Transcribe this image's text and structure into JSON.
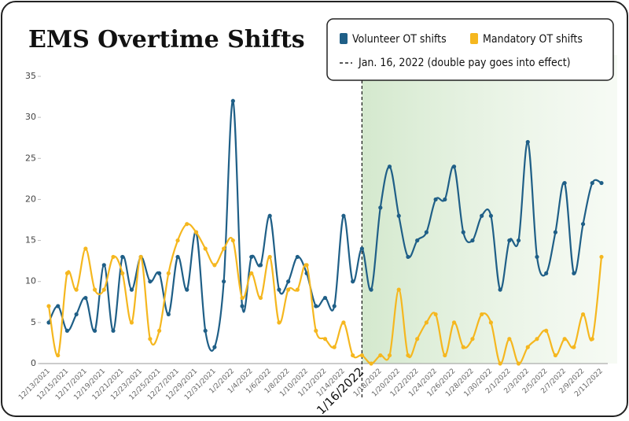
{
  "chart_data": {
    "type": "line",
    "title": "EMS Overtime Shifts",
    "categories": [
      "12/13/2021",
      null,
      "12/15/2021",
      null,
      "12/17/2021",
      null,
      "12/19/2021",
      null,
      "12/21/2021",
      null,
      "12/23/2021",
      null,
      "12/25/2021",
      null,
      "12/27/2021",
      null,
      "12/29/2021",
      null,
      "12/31/2021",
      null,
      "1/2/2022",
      null,
      "1/4/2022",
      null,
      "1/6/2022",
      null,
      "1/8/2022",
      null,
      "1/10/2022",
      null,
      "1/12/2022",
      null,
      "1/14/2022",
      null,
      "1/16/2022",
      null,
      "1/18/2022",
      null,
      "1/20/2022",
      null,
      "1/22/2022",
      null,
      "1/24/2022",
      null,
      "1/26/2022",
      null,
      "1/28/2022",
      null,
      "1/30/2022",
      null,
      "2/1/2022",
      null,
      "2/3/2022",
      null,
      "2/5/2022",
      null,
      "2/7/2022",
      null,
      "2/9/2022",
      null,
      "2/11/2022"
    ],
    "series": [
      {
        "name": "Volunteer OT shifts",
        "color": "#1f5f87",
        "values": [
          5,
          7,
          4,
          6,
          8,
          4,
          12,
          4,
          13,
          9,
          13,
          10,
          11,
          6,
          13,
          9,
          16,
          4,
          2,
          10,
          32,
          7,
          13,
          12,
          18,
          9,
          10,
          13,
          11,
          7,
          8,
          7,
          18,
          10,
          14,
          9,
          19,
          24,
          18,
          13,
          15,
          16,
          20,
          20,
          24,
          16,
          15,
          18,
          18,
          9,
          15,
          15,
          27,
          13,
          11,
          16,
          22,
          11,
          17,
          22,
          22
        ]
      },
      {
        "name": "Mandatory OT shifts",
        "color": "#f5b71f",
        "values": [
          7,
          1,
          11,
          9,
          14,
          9,
          9,
          13,
          11,
          5,
          13,
          3,
          4,
          11,
          15,
          17,
          16,
          14,
          12,
          14,
          15,
          8,
          11,
          8,
          13,
          5,
          9,
          9,
          12,
          4,
          3,
          2,
          5,
          1,
          1,
          0,
          1,
          1,
          9,
          1,
          3,
          5,
          6,
          1,
          5,
          2,
          3,
          6,
          5,
          0,
          3,
          0,
          2,
          3,
          4,
          1,
          3,
          2,
          6,
          3,
          13
        ]
      }
    ],
    "event": {
      "x": "1/16/2022",
      "label": "Jan. 16, 2022 (double pay goes into effect)"
    },
    "ylim": [
      0,
      35
    ],
    "yticks": [
      0,
      5,
      10,
      15,
      20,
      25,
      30,
      35
    ],
    "grid": false,
    "legend": "top-right"
  }
}
